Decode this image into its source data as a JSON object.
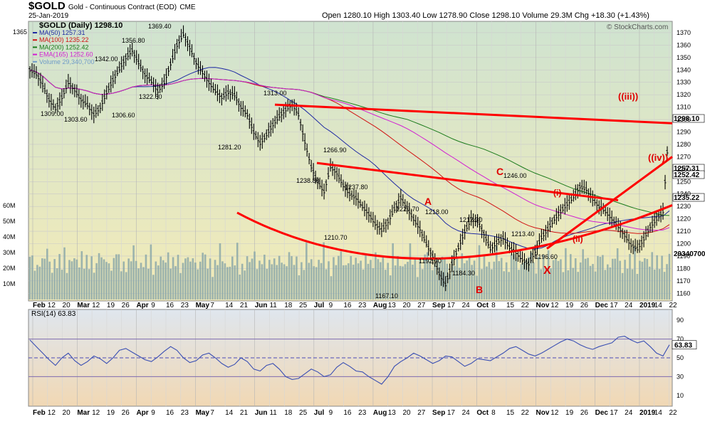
{
  "header": {
    "symbol": "$GOLD",
    "name": "Gold - Continuous Contract (EOD)",
    "exchange": "CME",
    "date": "25-Jan-2019",
    "stats": "Open 1280.10  High 1303.40  Low 1278.90  Close 1298.10  Volume 29.3M  Chg +18.30 (+1.43%)",
    "chart_label": "$GOLD (Daily) 1298.10",
    "watermark": "© StockCharts.com"
  },
  "legend": [
    {
      "label": "MA(50) 1257.31",
      "color": "#1f2aa3"
    },
    {
      "label": "MA(100) 1235.22",
      "color": "#d11414"
    },
    {
      "label": "MA(200) 1252.42",
      "color": "#1a7a1a"
    },
    {
      "label": "EMA(165) 1252.60",
      "color": "#d21fd2"
    },
    {
      "label": "Volume 29,340,700",
      "color": "#6f9ac8"
    }
  ],
  "rsi_label": "RSI(14) 63.83",
  "colors": {
    "price_bg_top": "#cfe3d0",
    "price_bg_bottom": "#f3ebb8",
    "rsi_bg_top": "#dfe6ee",
    "rsi_bg_bottom": "#f1d8b4",
    "candle": "#000000",
    "volume": "#8da9a9",
    "trendline": "#ff0000",
    "wave_label": "#e00000",
    "rsi_line": "#3a4fb3"
  },
  "chart_data": {
    "type": "line",
    "title": "$GOLD (Daily) 1298.10",
    "y_axis_ticks": [
      1160,
      1170,
      1180,
      1190,
      1200,
      1210,
      1220,
      1230,
      1240,
      1250,
      1260,
      1270,
      1280,
      1290,
      1300,
      1310,
      1320,
      1330,
      1340,
      1350,
      1360,
      1370
    ],
    "ylim": [
      1155,
      1378
    ],
    "volume_ticks": [
      "10M",
      "20M",
      "30M",
      "40M",
      "50M",
      "60M"
    ],
    "x_tick_labels": [
      "Feb",
      "12",
      "20",
      "Mar",
      "12",
      "19",
      "26",
      "Apr",
      "9",
      "16",
      "23",
      "May",
      "7",
      "14",
      "21",
      "Jun",
      "11",
      "18",
      "25",
      "Jul",
      "9",
      "16",
      "23",
      "Aug",
      "13",
      "20",
      "27",
      "Sep",
      "17",
      "24",
      "Oct",
      "8",
      "15",
      "22",
      "Nov",
      "12",
      "19",
      "26",
      "Dec",
      "17",
      "24",
      "2019",
      "14",
      "22"
    ],
    "price_series": {
      "name": "$GOLD",
      "x": [
        0,
        3,
        6,
        9,
        12,
        15,
        18,
        21,
        24,
        27,
        30,
        33,
        36,
        39,
        42,
        45,
        48,
        51,
        54,
        57,
        60,
        63,
        66,
        69,
        72,
        75,
        78,
        81,
        84,
        87,
        90,
        93,
        96,
        99,
        102,
        105,
        108,
        111,
        114,
        117,
        120,
        123,
        126,
        129,
        132,
        135,
        138,
        141,
        144,
        147,
        150,
        153,
        156,
        159,
        162,
        165,
        168,
        171,
        174,
        177,
        180,
        183,
        186,
        189,
        192,
        195,
        198,
        201,
        204,
        207,
        210,
        213,
        216,
        219,
        222,
        225,
        228,
        231,
        234,
        237,
        240,
        243,
        246,
        249,
        252,
        255,
        258,
        261,
        264,
        267,
        270,
        273,
        276,
        279,
        282,
        285,
        288,
        291,
        294,
        297,
        300
      ],
      "values": [
        1340,
        1337,
        1328,
        1316,
        1309,
        1318,
        1330,
        1324,
        1316,
        1312,
        1304,
        1310,
        1322,
        1332,
        1341,
        1350,
        1356,
        1346,
        1336,
        1331,
        1323,
        1330,
        1345,
        1360,
        1369,
        1358,
        1346,
        1338,
        1330,
        1323,
        1318,
        1322,
        1320,
        1310,
        1304,
        1290,
        1281,
        1288,
        1296,
        1303,
        1308,
        1313,
        1304,
        1282,
        1262,
        1250,
        1242,
        1262,
        1257,
        1247,
        1240,
        1237,
        1230,
        1224,
        1216,
        1211,
        1218,
        1228,
        1237,
        1229,
        1220,
        1212,
        1200,
        1190,
        1176,
        1167,
        1184,
        1197,
        1210,
        1220,
        1218,
        1208,
        1196,
        1201,
        1205,
        1197,
        1193,
        1187,
        1184,
        1194,
        1205,
        1212,
        1220,
        1226,
        1232,
        1238,
        1246,
        1244,
        1236,
        1230,
        1226,
        1220,
        1214,
        1207,
        1199,
        1196,
        1204,
        1214,
        1220,
        1226,
        1298.1
      ]
    },
    "wave_labels": [
      "((iii))",
      "((iv))",
      "(i)",
      "(ii)",
      "A",
      "B",
      "C",
      "X"
    ],
    "price_annotations": [
      "1365",
      "1369.40",
      "1356.80",
      "1342.00",
      "1322.60",
      "1309.00",
      "1303.60",
      "1306.60",
      "1313.00",
      "1281.20",
      "1266.90",
      "1238.80",
      "1237.80",
      "1210.70",
      "1220.70",
      "1218.00",
      "1212.30",
      "1192.70",
      "1184.30",
      "1167.10",
      "1246.00",
      "1213.40",
      "1196.60",
      "1298.10",
      "1257.31",
      "1252.42",
      "1235.22",
      "29340700"
    ],
    "rsi": {
      "name": "RSI(14)",
      "ylim": [
        0,
        100
      ],
      "ticks": [
        10,
        30,
        50,
        70,
        90
      ],
      "values": [
        69,
        62,
        55,
        48,
        42,
        50,
        55,
        47,
        42,
        46,
        52,
        49,
        44,
        50,
        58,
        60,
        56,
        52,
        48,
        46,
        51,
        57,
        62,
        58,
        50,
        45,
        47,
        53,
        55,
        50,
        44,
        40,
        43,
        50,
        46,
        38,
        36,
        42,
        44,
        38,
        30,
        27,
        28,
        33,
        38,
        35,
        30,
        32,
        40,
        45,
        41,
        36,
        35,
        30,
        26,
        22,
        30,
        41,
        46,
        50,
        55,
        52,
        48,
        44,
        47,
        52,
        51,
        46,
        41,
        44,
        49,
        48,
        47,
        51,
        55,
        60,
        62,
        58,
        54,
        52,
        55,
        59,
        63,
        67,
        70,
        68,
        64,
        61,
        59,
        62,
        64,
        66,
        72,
        73,
        69,
        66,
        68,
        62,
        55,
        52,
        63.83
      ]
    }
  }
}
